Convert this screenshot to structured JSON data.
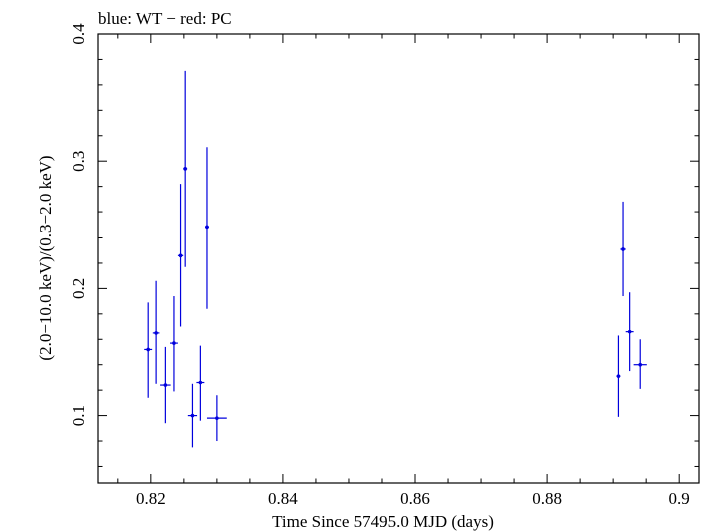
{
  "chart_data": {
    "type": "scatter",
    "title": "blue: WT − red: PC",
    "xlabel": "Time Since 57495.0 MJD (days)",
    "ylabel": "(2.0−10.0 keV)/(0.3−2.0 keV)",
    "xlim": [
      0.812,
      0.903
    ],
    "ylim": [
      0.047,
      0.4
    ],
    "xticks": [
      0.82,
      0.84,
      0.86,
      0.88,
      0.9
    ],
    "xtick_labels": [
      "0.82",
      "0.84",
      "0.86",
      "0.88",
      "0.9"
    ],
    "yticks": [
      0.1,
      0.2,
      0.3,
      0.4
    ],
    "ytick_labels": [
      "0.1",
      "0.2",
      "0.3",
      "0.4"
    ],
    "grid": false,
    "series": [
      {
        "name": "WT",
        "color": "#0000dd",
        "points": [
          {
            "x": 0.8196,
            "y": 0.152,
            "xerr": 0.0006,
            "ylo": 0.114,
            "yhi": 0.189
          },
          {
            "x": 0.8208,
            "y": 0.165,
            "xerr": 0.0005,
            "ylo": 0.125,
            "yhi": 0.206
          },
          {
            "x": 0.8222,
            "y": 0.124,
            "xerr": 0.0008,
            "ylo": 0.094,
            "yhi": 0.154
          },
          {
            "x": 0.8235,
            "y": 0.157,
            "xerr": 0.0006,
            "ylo": 0.119,
            "yhi": 0.194
          },
          {
            "x": 0.8245,
            "y": 0.226,
            "xerr": 0.0004,
            "ylo": 0.17,
            "yhi": 0.282
          },
          {
            "x": 0.8252,
            "y": 0.294,
            "xerr": 0.0003,
            "ylo": 0.217,
            "yhi": 0.371
          },
          {
            "x": 0.8263,
            "y": 0.1,
            "xerr": 0.0007,
            "ylo": 0.075,
            "yhi": 0.125
          },
          {
            "x": 0.8275,
            "y": 0.126,
            "xerr": 0.0006,
            "ylo": 0.096,
            "yhi": 0.155
          },
          {
            "x": 0.8285,
            "y": 0.248,
            "xerr": 0.0003,
            "ylo": 0.184,
            "yhi": 0.311
          },
          {
            "x": 0.83,
            "y": 0.098,
            "xerr": 0.0015,
            "ylo": 0.08,
            "yhi": 0.116
          },
          {
            "x": 0.8908,
            "y": 0.131,
            "xerr": 0.0003,
            "ylo": 0.099,
            "yhi": 0.163
          },
          {
            "x": 0.8915,
            "y": 0.231,
            "xerr": 0.0004,
            "ylo": 0.194,
            "yhi": 0.268
          },
          {
            "x": 0.8925,
            "y": 0.166,
            "xerr": 0.0006,
            "ylo": 0.135,
            "yhi": 0.197
          },
          {
            "x": 0.8941,
            "y": 0.14,
            "xerr": 0.001,
            "ylo": 0.121,
            "yhi": 0.16
          }
        ]
      }
    ]
  }
}
